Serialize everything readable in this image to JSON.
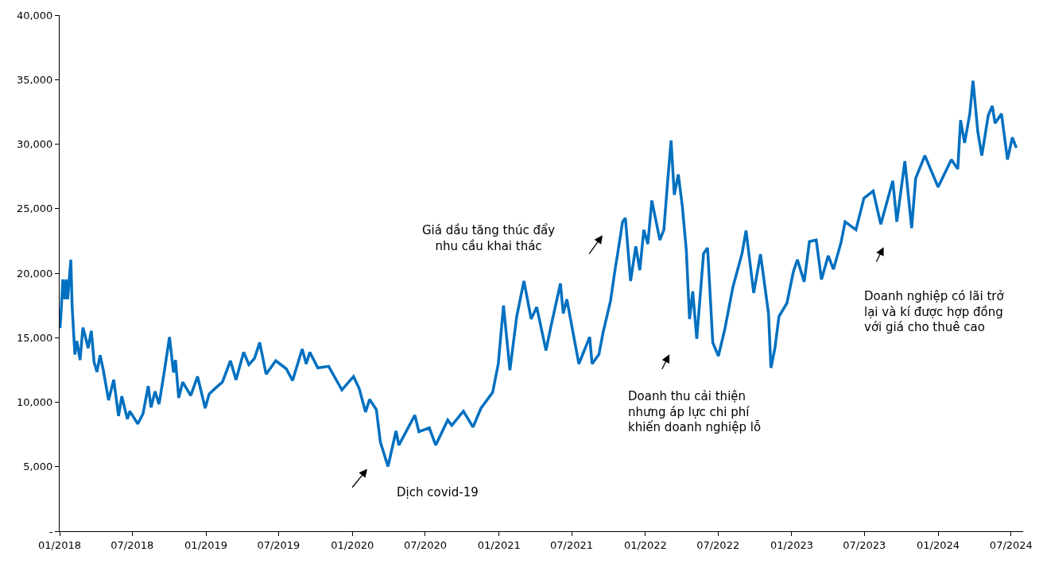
{
  "chart_data": {
    "type": "line",
    "x": [
      "2018-01-02",
      "2018-01-05",
      "2018-01-09",
      "2018-01-14",
      "2018-01-17",
      "2018-01-21",
      "2018-01-29",
      "2018-02-01",
      "2018-02-08",
      "2018-02-13",
      "2018-02-21",
      "2018-02-28",
      "2018-03-05",
      "2018-03-13",
      "2018-03-21",
      "2018-03-28",
      "2018-04-04",
      "2018-04-12",
      "2018-04-20",
      "2018-05-03",
      "2018-05-16",
      "2018-05-28",
      "2018-06-05",
      "2018-06-19",
      "2018-06-25",
      "2018-07-15",
      "2018-07-28",
      "2018-08-10",
      "2018-08-17",
      "2018-08-27",
      "2018-09-06",
      "2018-09-19",
      "2018-10-02",
      "2018-10-12",
      "2018-10-17",
      "2018-10-25",
      "2018-11-04",
      "2018-11-24",
      "2018-12-11",
      "2018-12-30",
      "2019-01-09",
      "2019-01-26",
      "2019-02-11",
      "2019-03-03",
      "2019-03-17",
      "2019-04-05",
      "2019-04-18",
      "2019-05-02",
      "2019-05-15",
      "2019-05-31",
      "2019-06-24",
      "2019-07-20",
      "2019-08-05",
      "2019-08-29",
      "2019-09-08",
      "2019-09-17",
      "2019-10-07",
      "2019-11-03",
      "2019-12-06",
      "2020-01-04",
      "2020-01-18",
      "2020-02-03",
      "2020-02-13",
      "2020-03-01",
      "2020-03-11",
      "2020-03-30",
      "2020-04-19",
      "2020-04-26",
      "2020-06-05",
      "2020-06-15",
      "2020-07-11",
      "2020-07-27",
      "2020-08-26",
      "2020-09-05",
      "2020-10-04",
      "2020-10-28",
      "2020-11-17",
      "2020-12-16",
      "2020-12-30",
      "2021-01-12",
      "2021-01-28",
      "2021-02-14",
      "2021-03-04",
      "2021-03-22",
      "2021-04-05",
      "2021-04-28",
      "2021-05-11",
      "2021-06-03",
      "2021-06-10",
      "2021-06-19",
      "2021-07-19",
      "2021-08-15",
      "2021-08-21",
      "2021-09-07",
      "2021-09-17",
      "2021-10-06",
      "2021-10-18",
      "2021-10-23",
      "2021-11-05",
      "2021-11-12",
      "2021-11-25",
      "2021-12-08",
      "2021-12-18",
      "2021-12-28",
      "2022-01-07",
      "2022-01-17",
      "2022-02-06",
      "2022-02-16",
      "2022-02-26",
      "2022-03-06",
      "2022-03-14",
      "2022-03-24",
      "2022-04-03",
      "2022-04-13",
      "2022-04-21",
      "2022-04-29",
      "2022-05-09",
      "2022-05-26",
      "2022-06-05",
      "2022-06-18",
      "2022-07-02",
      "2022-07-18",
      "2022-08-07",
      "2022-08-30",
      "2022-09-09",
      "2022-09-28",
      "2022-10-15",
      "2022-11-04",
      "2022-11-10",
      "2022-11-20",
      "2022-11-30",
      "2022-12-20",
      "2023-01-05",
      "2023-01-15",
      "2023-02-01",
      "2023-02-14",
      "2023-03-03",
      "2023-03-16",
      "2023-04-02",
      "2023-04-15",
      "2023-05-04",
      "2023-05-14",
      "2023-06-10",
      "2023-06-30",
      "2023-07-23",
      "2023-08-11",
      "2023-09-10",
      "2023-09-20",
      "2023-10-10",
      "2023-10-27",
      "2023-11-06",
      "2023-11-29",
      "2024-01-01",
      "2024-02-03",
      "2024-02-19",
      "2024-02-26",
      "2024-03-07",
      "2024-03-20",
      "2024-03-28",
      "2024-04-09",
      "2024-04-19",
      "2024-05-05",
      "2024-05-15",
      "2024-05-22",
      "2024-06-07",
      "2024-06-22",
      "2024-07-04",
      "2024-07-14"
    ],
    "series": [
      {
        "color": "#0070c0",
        "values": [
          15740,
          17190,
          19510,
          17980,
          19510,
          17980,
          21040,
          17550,
          13700,
          14740,
          13270,
          15780,
          15230,
          14190,
          15530,
          13090,
          12350,
          13640,
          12480,
          10150,
          11740,
          8930,
          10460,
          8690,
          9300,
          8320,
          9110,
          11250,
          9600,
          10830,
          9850,
          12360,
          15050,
          12300,
          13270,
          10340,
          11560,
          10520,
          11990,
          9540,
          10640,
          11130,
          11560,
          13210,
          11740,
          13880,
          12910,
          13390,
          14620,
          12170,
          13210,
          12600,
          11680,
          14130,
          12970,
          13880,
          12660,
          12780,
          10950,
          11990,
          11070,
          9240,
          10220,
          9420,
          6900,
          5020,
          7770,
          6670,
          8990,
          7710,
          8010,
          6670,
          8620,
          8200,
          9300,
          8070,
          9540,
          10760,
          12970,
          17490,
          12480,
          16640,
          19390,
          16450,
          17370,
          14010,
          15960,
          19200,
          16880,
          17980,
          12970,
          15050,
          12970,
          13700,
          15350,
          17860,
          20430,
          21350,
          23980,
          24280,
          19390,
          22080,
          20240,
          23360,
          22260,
          25630,
          22570,
          23360,
          27340,
          30280,
          26060,
          27650,
          25200,
          21770,
          16450,
          18590,
          14920,
          21530,
          21960,
          14620,
          13580,
          15660,
          18900,
          21530,
          23300,
          18470,
          21470,
          16880,
          12660,
          14190,
          16640,
          17680,
          20120,
          21040,
          19330,
          22450,
          22570,
          19510,
          21350,
          20300,
          22390,
          23980,
          23360,
          25810,
          26360,
          23790,
          27160,
          23980,
          28680,
          23490,
          27340,
          29110,
          26670,
          28800,
          28070,
          31860,
          30090,
          32350,
          34920,
          30950,
          29110,
          32230,
          32960,
          31620,
          32350,
          28800,
          30520,
          29720
        ]
      }
    ],
    "xlim": [
      "2018-01-01",
      "2024-07-31"
    ],
    "xticks": [
      {
        "value": "2018-01-01",
        "label": "01/2018"
      },
      {
        "value": "2018-07-01",
        "label": "07/2018"
      },
      {
        "value": "2019-01-01",
        "label": "01/2019"
      },
      {
        "value": "2019-07-01",
        "label": "07/2019"
      },
      {
        "value": "2020-01-01",
        "label": "01/2020"
      },
      {
        "value": "2020-07-01",
        "label": "07/2020"
      },
      {
        "value": "2021-01-01",
        "label": "01/2021"
      },
      {
        "value": "2021-07-01",
        "label": "07/2021"
      },
      {
        "value": "2022-01-01",
        "label": "01/2022"
      },
      {
        "value": "2022-07-01",
        "label": "07/2022"
      },
      {
        "value": "2023-01-01",
        "label": "01/2023"
      },
      {
        "value": "2023-07-01",
        "label": "07/2023"
      },
      {
        "value": "2024-01-01",
        "label": "01/2024"
      },
      {
        "value": "2024-07-01",
        "label": "07/2024"
      }
    ],
    "ylim": [
      0,
      40000
    ],
    "yticks": [
      {
        "value": 0,
        "label": "-"
      },
      {
        "value": 5000,
        "label": "5,000"
      },
      {
        "value": 10000,
        "label": "10,000"
      },
      {
        "value": 15000,
        "label": "15,000"
      },
      {
        "value": 20000,
        "label": "20,000"
      },
      {
        "value": 25000,
        "label": "25,000"
      },
      {
        "value": 30000,
        "label": "30,000"
      },
      {
        "value": 35000,
        "label": "35,000"
      },
      {
        "value": 40000,
        "label": "40,000"
      }
    ],
    "grid": false,
    "line_style": "solid",
    "annotations": [
      "Giá dầu tăng thúc đẩy\nnhu cầu khai thác",
      "Dịch covid-19",
      "Doanh thu cải thiện\nnhưng áp lực chi phí\nkhiến doanh nghiệp lỗ",
      "Doanh nghiệp có lãi trở\nlại và kí được hợp đồng\nvới giá cho thuê cao"
    ]
  }
}
